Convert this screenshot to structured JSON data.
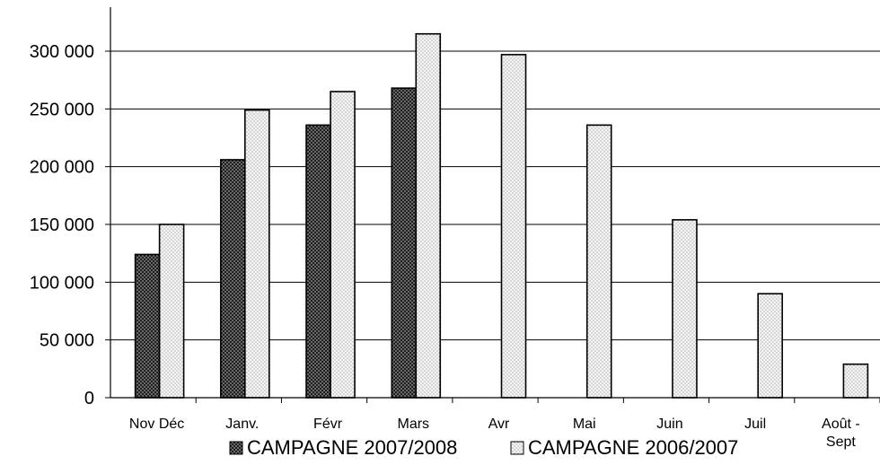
{
  "chart_data": {
    "type": "bar",
    "categories": [
      "Nov Déc",
      "Janv.",
      "Févr",
      "Mars",
      "Avr",
      "Mai",
      "Juin",
      "Juil",
      "Août - Sept"
    ],
    "category_lines": [
      [
        "Nov Déc"
      ],
      [
        "Janv."
      ],
      [
        "Févr"
      ],
      [
        "Mars"
      ],
      [
        "Avr"
      ],
      [
        "Mai"
      ],
      [
        "Juin"
      ],
      [
        "Juil"
      ],
      [
        "Août -",
        "Sept"
      ]
    ],
    "series": [
      {
        "name": "CAMPAGNE 2007/2008",
        "values": [
          124000,
          206000,
          236000,
          268000,
          null,
          null,
          null,
          null,
          null
        ],
        "pattern": "dark-checker"
      },
      {
        "name": "CAMPAGNE 2006/2007",
        "values": [
          150000,
          249000,
          265000,
          315000,
          297000,
          236000,
          154000,
          90000,
          29000
        ],
        "pattern": "light-dots"
      }
    ],
    "y_ticks": [
      "0",
      "50 000",
      "100 000",
      "150 000",
      "200 000",
      "250 000",
      "300 000"
    ],
    "y_tick_values": [
      0,
      50000,
      100000,
      150000,
      200000,
      250000,
      300000
    ],
    "ylim": [
      0,
      350000
    ],
    "grid": true,
    "legend_position": "bottom",
    "title": "",
    "xlabel": "",
    "ylabel": ""
  },
  "colors": {
    "dark_series": "#4a4a4a",
    "light_series": "#f0f0f0",
    "gridline": "#000000"
  }
}
